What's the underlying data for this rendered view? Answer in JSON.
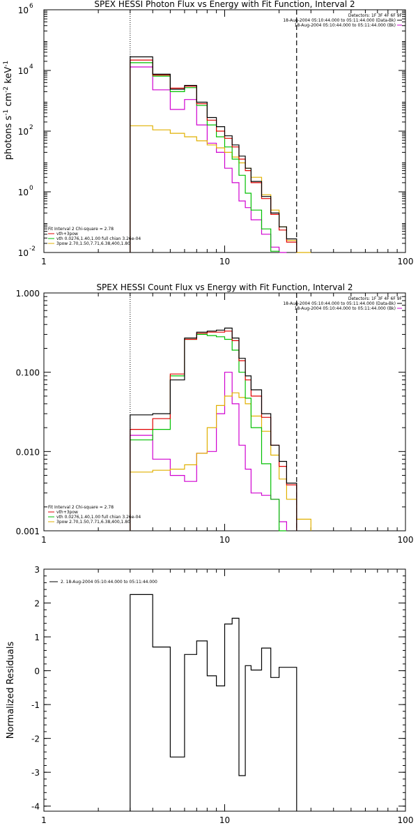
{
  "figure": {
    "x_scale": "log",
    "xlim": [
      1,
      100
    ],
    "x_tick_labels": [
      "1",
      "10",
      "100"
    ],
    "vline_dotted_keV": 3,
    "vline_dashed_keV": 25
  },
  "colors": {
    "data": "#000000",
    "total": "#e00000",
    "thermal": "#00c000",
    "nonthermal": "#e0b000",
    "background": "#d000d0"
  },
  "chart_data": [
    {
      "type": "line",
      "step": true,
      "title": "SPEX HESSI Photon Flux vs Energy with Fit Function, Interval 2",
      "ylabel_parts": [
        "photons s",
        "-1",
        " cm",
        "-2",
        " keV",
        "-1"
      ],
      "y_scale": "log",
      "ylim": [
        0.01,
        1000000
      ],
      "y_ticks": [
        {
          "value": 0.01,
          "base": "10",
          "exp": "-2"
        },
        {
          "value": 1,
          "base": "10",
          "exp": "0"
        },
        {
          "value": 100,
          "base": "10",
          "exp": "2"
        },
        {
          "value": 10000,
          "base": "10",
          "exp": "4"
        },
        {
          "value": 1000000,
          "base": "10",
          "exp": "6"
        }
      ],
      "info_top_right": [
        "Detectors: 1F 3F 4F 6F 9F",
        "18-Aug-2004 05:10:44.000 to 05:11:44.000 (Data-Bk)",
        "18-Aug-2004 05:10:44.000 to 05:11:44.000 (Bk)"
      ],
      "legend_bottom_left": [
        "Fit Interval  2    Chi-square = 2.78",
        "vth+3pow",
        "vth 0.0276,1.40,1.00  full chian 3.26e-04",
        "3pow 2.70,1.50,7.71,6.38,400,1.80"
      ],
      "bin_edges": [
        3,
        4,
        5,
        6,
        7,
        8,
        9,
        10,
        11,
        12,
        13,
        14,
        16,
        18,
        20,
        22,
        25,
        30
      ],
      "series": [
        {
          "name": "Data-Bk",
          "color_key": "data",
          "values": [
            28000,
            7500,
            2400,
            3200,
            900,
            280,
            140,
            70,
            35,
            15,
            6,
            2.2,
            0.7,
            0.2,
            0.07,
            0.028
          ]
        },
        {
          "name": "vth+3pow",
          "color_key": "total",
          "values": [
            22000,
            7000,
            2600,
            3000,
            800,
            230,
            100,
            58,
            30,
            12,
            5,
            2.0,
            0.6,
            0.18,
            0.055,
            0.022
          ]
        },
        {
          "name": "vth",
          "color_key": "thermal",
          "values": [
            18000,
            6500,
            2000,
            2700,
            700,
            160,
            65,
            30,
            12,
            3.5,
            0.9,
            0.25,
            0.06,
            0.011
          ]
        },
        {
          "name": "3pow",
          "color_key": "nonthermal",
          "values": [
            150,
            110,
            85,
            65,
            48,
            35,
            28,
            20,
            14,
            9,
            6,
            3,
            0.8,
            0.25,
            0.07,
            0.025,
            0.009
          ]
        },
        {
          "name": "Bk",
          "color_key": "background",
          "values": [
            13000,
            2300,
            520,
            1100,
            160,
            40,
            20,
            6,
            2,
            0.5,
            0.3,
            0.12,
            0.04,
            0.015,
            0.009
          ]
        }
      ]
    },
    {
      "type": "line",
      "step": true,
      "title": "SPEX HESSI Count Flux vs Energy with Fit Function, Interval 2",
      "y_scale": "log",
      "ylim": [
        0.001,
        1.0
      ],
      "y_ticks": [
        {
          "value": 0.001,
          "label": "0.001"
        },
        {
          "value": 0.01,
          "label": "0.010"
        },
        {
          "value": 0.1,
          "label": "0.100"
        },
        {
          "value": 1.0,
          "label": "1.000"
        }
      ],
      "info_top_right": [
        "Detectors: 1F 3F 4F 6F 9F",
        "18-Aug-2004 05:10:44.000 to 05:11:44.000 (Data-Bk)",
        "18-Aug-2004 05:10:44.000 to 05:11:44.000 (Bk)"
      ],
      "legend_bottom_left": [
        "Fit Interval  2    Chi-square = 2.78",
        "vth+3pow",
        "vth 0.0276,1.40,1.00  full chian 3.26e-04",
        "3pow 2.70,1.50,7.71,6.38,400,1.80"
      ],
      "bin_edges": [
        3,
        4,
        5,
        6,
        7,
        8,
        9,
        10,
        11,
        12,
        13,
        14,
        16,
        18,
        20,
        22,
        25,
        30
      ],
      "series": [
        {
          "name": "Data-Bk",
          "color_key": "data",
          "values": [
            0.029,
            0.03,
            0.08,
            0.27,
            0.32,
            0.33,
            0.34,
            0.36,
            0.27,
            0.15,
            0.09,
            0.06,
            0.03,
            0.012,
            0.0075,
            0.004
          ]
        },
        {
          "name": "vth+3pow",
          "color_key": "total",
          "values": [
            0.019,
            0.026,
            0.095,
            0.26,
            0.31,
            0.32,
            0.32,
            0.33,
            0.25,
            0.14,
            0.08,
            0.05,
            0.027,
            0.012,
            0.0065,
            0.0038
          ]
        },
        {
          "name": "vth",
          "color_key": "thermal",
          "values": [
            0.014,
            0.019,
            0.09,
            0.26,
            0.3,
            0.29,
            0.28,
            0.26,
            0.19,
            0.1,
            0.047,
            0.02,
            0.007,
            0.0025,
            0.001
          ]
        },
        {
          "name": "3pow",
          "color_key": "nonthermal",
          "values": [
            0.0055,
            0.0058,
            0.006,
            0.0068,
            0.0095,
            0.02,
            0.038,
            0.05,
            0.055,
            0.048,
            0.04,
            0.028,
            0.018,
            0.009,
            0.0045,
            0.0025,
            0.0014
          ]
        },
        {
          "name": "Bk",
          "color_key": "background",
          "values": [
            0.016,
            0.008,
            0.005,
            0.0042,
            0.0095,
            0.01,
            0.03,
            0.1,
            0.04,
            0.012,
            0.006,
            0.003,
            0.0028,
            0.0025,
            0.0013
          ]
        }
      ]
    },
    {
      "type": "line",
      "step": true,
      "ylabel": "Normalized Residuals",
      "y_scale": "linear",
      "ylim": [
        -4.15,
        3.0
      ],
      "y_ticks": [
        {
          "value": 3,
          "label": "3"
        },
        {
          "value": 2,
          "label": "2"
        },
        {
          "value": 1,
          "label": "1"
        },
        {
          "value": 0,
          "label": "0"
        },
        {
          "value": -1,
          "label": "-1"
        },
        {
          "value": -2,
          "label": "-2"
        },
        {
          "value": -3,
          "label": "-3"
        },
        {
          "value": -4,
          "label": "-4"
        }
      ],
      "legend_top_left": [
        "2. 18-Aug-2004 05:10:44.000 to 05:11:44.000"
      ],
      "bin_edges": [
        3,
        4,
        5,
        6,
        7,
        8,
        9,
        10,
        11,
        12,
        13,
        14,
        16,
        18,
        20,
        22,
        25
      ],
      "series": [
        {
          "color_key": "data",
          "values": [
            2.25,
            0.7,
            -2.55,
            0.48,
            0.88,
            -0.15,
            -0.45,
            1.38,
            1.55,
            -3.1,
            0.15,
            0.02,
            0.67,
            -0.2,
            0.1,
            0.1
          ]
        }
      ]
    }
  ]
}
